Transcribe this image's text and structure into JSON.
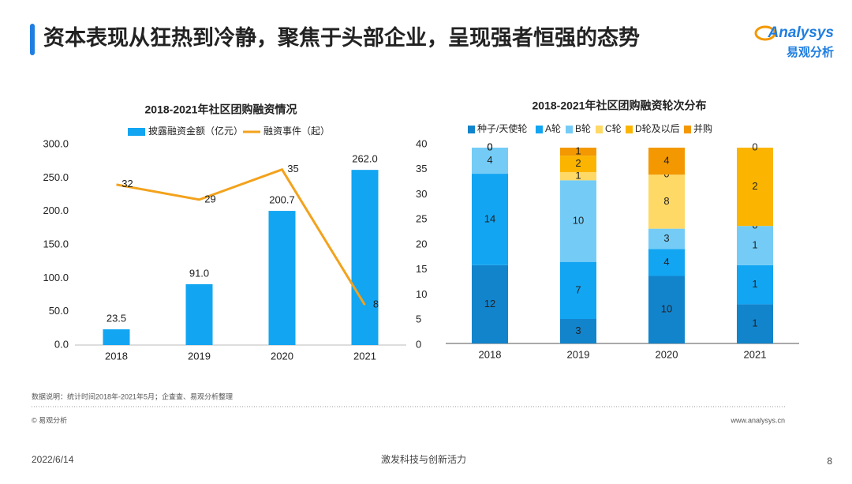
{
  "header": {
    "title": "资本表现从狂热到冷静，聚焦于头部企业，呈现强者恒强的态势",
    "logo": "Analysys",
    "logo_cn": "易观分析"
  },
  "chart_data": [
    {
      "type": "bar",
      "title": "2018-2021年社区团购融资情况",
      "categories": [
        "2018",
        "2019",
        "2020",
        "2021"
      ],
      "series": [
        {
          "name": "披露融资金额（亿元）",
          "color": "#12a5f2",
          "type": "bar",
          "values": [
            23.5,
            91.0,
            200.7,
            262.0
          ],
          "value_labels": [
            "23.5",
            "91.0",
            "200.7",
            "262.0"
          ]
        },
        {
          "name": "融资事件（起）",
          "color": "#f3a21c",
          "type": "line",
          "axis": "y2",
          "values": [
            32,
            29,
            35,
            8
          ]
        }
      ],
      "ylim": [
        0,
        300
      ],
      "yticks": [
        {
          "value": 0,
          "label": "0.0"
        },
        {
          "value": 50,
          "label": "50.0"
        },
        {
          "value": 100,
          "label": "100.0"
        },
        {
          "value": 150,
          "label": "150.0"
        },
        {
          "value": 200,
          "label": "200.0"
        },
        {
          "value": 250,
          "label": "250.0"
        },
        {
          "value": 300,
          "label": "300.0"
        }
      ],
      "y2lim": [
        0,
        40
      ],
      "y2ticks": [
        0,
        5,
        10,
        15,
        20,
        25,
        30,
        35,
        40
      ],
      "legend": "top"
    },
    {
      "type": "stacked_bar_100",
      "title": "2018-2021年社区团购融资轮次分布",
      "categories": [
        "2018",
        "2019",
        "2020",
        "2021"
      ],
      "series": [
        {
          "name": "种子/天使轮",
          "color": "#1284cc",
          "values": [
            12,
            3,
            10,
            1
          ]
        },
        {
          "name": "A轮",
          "color": "#12a5f2",
          "values": [
            14,
            7,
            4,
            1
          ]
        },
        {
          "name": "B轮",
          "color": "#74ccf6",
          "values": [
            4,
            10,
            3,
            1
          ]
        },
        {
          "name": "C轮",
          "color": "#ffd966",
          "values": [
            0,
            1,
            8,
            0
          ]
        },
        {
          "name": "D轮及以后",
          "color": "#fbb500",
          "values": [
            0,
            2,
            0,
            2
          ]
        },
        {
          "name": "并购",
          "color": "#f39800",
          "values": [
            0,
            1,
            4,
            0
          ]
        }
      ],
      "legend": "top"
    }
  ],
  "footer": {
    "note": "数据说明：统计时间2018年-2021年5月；企查查、易观分析整理",
    "copyright": "© 易观分析",
    "url": "www.analysys.cn",
    "date": "2022/6/14",
    "slogan": "激发科技与创新活力",
    "page": 8
  }
}
